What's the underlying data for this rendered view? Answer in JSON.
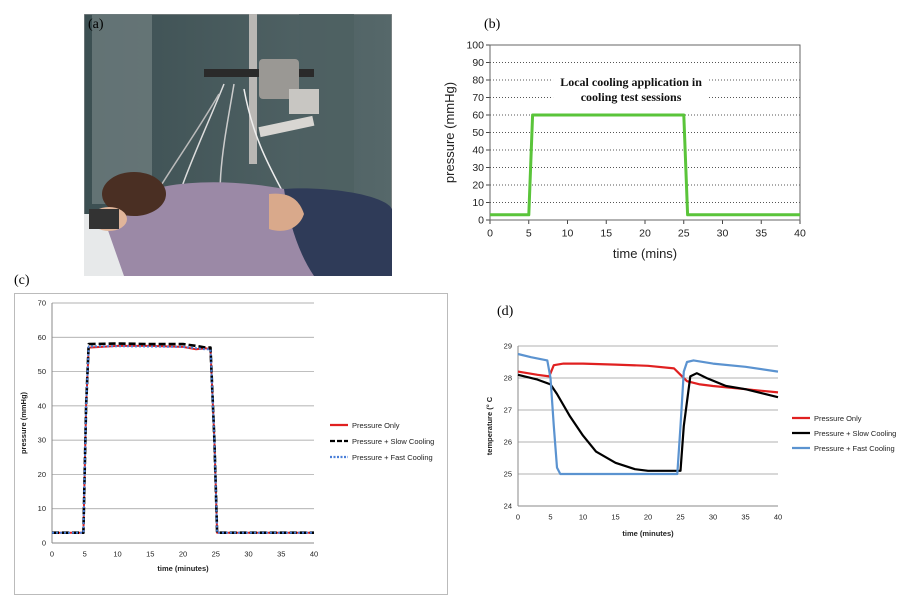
{
  "panels": {
    "a": "(a)",
    "b": "(b)",
    "c": "(c)",
    "d": "(d)"
  },
  "chart_data": [
    {
      "panel": "b",
      "type": "line",
      "annotation": [
        "Local cooling application in",
        "cooling test sessions"
      ],
      "xlabel": "time (mins)",
      "ylabel": "pressure (mmHg)",
      "xlim": [
        0,
        40
      ],
      "ylim": [
        0,
        100
      ],
      "xticks": [
        0,
        5,
        10,
        15,
        20,
        25,
        30,
        35,
        40
      ],
      "yticks": [
        0,
        10,
        20,
        30,
        40,
        50,
        60,
        70,
        80,
        90,
        100
      ],
      "grid": "horizontal dotted",
      "color": "#5ac43a",
      "series": [
        {
          "x": [
            0,
            5,
            5.5,
            25,
            25.5,
            40
          ],
          "y": [
            3,
            3,
            60,
            60,
            3,
            3
          ]
        }
      ]
    },
    {
      "panel": "c",
      "type": "line",
      "xlabel": "time (minutes)",
      "ylabel": "pressure (mmHg)",
      "xlim": [
        0,
        40
      ],
      "ylim": [
        0,
        70
      ],
      "xticks": [
        0,
        5,
        10,
        15,
        20,
        25,
        30,
        35,
        40
      ],
      "yticks": [
        0,
        10,
        20,
        30,
        40,
        50,
        60,
        70
      ],
      "grid": "horizontal",
      "legend": "right",
      "series": [
        {
          "name": "Pressure Only",
          "color": "#e02020",
          "style": "solid",
          "x": [
            0,
            4.8,
            5.2,
            5.6,
            10,
            15,
            20,
            22,
            23.5,
            24.2,
            24.8,
            25.2,
            30,
            35,
            40
          ],
          "y": [
            3,
            3,
            40,
            57,
            57.5,
            57.5,
            57.2,
            56.5,
            56.8,
            56.5,
            30,
            3,
            3,
            3,
            3
          ]
        },
        {
          "name": "Pressure + Slow Cooling",
          "color": "#000000",
          "style": "dashed",
          "x": [
            0,
            4.8,
            5.2,
            5.6,
            10,
            15,
            20,
            22,
            23.5,
            24.2,
            24.8,
            25.2,
            30,
            35,
            40
          ],
          "y": [
            3,
            3,
            40,
            58,
            58.2,
            58,
            58,
            57.5,
            57,
            57,
            30,
            3,
            3,
            3,
            3
          ]
        },
        {
          "name": "Pressure + Fast Cooling",
          "color": "#4a7fd8",
          "style": "dotted",
          "x": [
            0,
            4.8,
            5.2,
            5.6,
            10,
            15,
            20,
            22,
            23.5,
            24.2,
            24.8,
            25.2,
            30,
            35,
            40
          ],
          "y": [
            3,
            3,
            40,
            57.3,
            57.4,
            57.3,
            57.2,
            56.8,
            56.5,
            56.5,
            30,
            3,
            3,
            3,
            3
          ]
        }
      ]
    },
    {
      "panel": "d",
      "type": "line",
      "xlabel": "time (minutes)",
      "ylabel": "temperature (° C",
      "xlim": [
        0,
        40
      ],
      "ylim": [
        24,
        29
      ],
      "xticks": [
        0,
        5,
        10,
        15,
        20,
        25,
        30,
        35,
        40
      ],
      "yticks": [
        24,
        25,
        26,
        27,
        28,
        29
      ],
      "grid": "horizontal",
      "legend": "right",
      "series": [
        {
          "name": "Pressure Only",
          "color": "#e02020",
          "style": "solid",
          "x": [
            0,
            3,
            4.8,
            5.5,
            7,
            10,
            15,
            20,
            24,
            25,
            26,
            28,
            30,
            35,
            40
          ],
          "y": [
            28.2,
            28.1,
            28.05,
            28.4,
            28.45,
            28.45,
            28.42,
            28.38,
            28.3,
            28.1,
            27.9,
            27.8,
            27.75,
            27.65,
            27.55
          ]
        },
        {
          "name": "Pressure + Slow Cooling",
          "color": "#000000",
          "style": "solid",
          "x": [
            0,
            3,
            5,
            6,
            8,
            10,
            12,
            15,
            18,
            20,
            24,
            25,
            25.5,
            26.5,
            27.5,
            29,
            32,
            35,
            40
          ],
          "y": [
            28.1,
            27.95,
            27.8,
            27.5,
            26.8,
            26.2,
            25.7,
            25.35,
            25.15,
            25.1,
            25.1,
            25.1,
            26.5,
            28.05,
            28.15,
            28.0,
            27.75,
            27.65,
            27.4
          ]
        },
        {
          "name": "Pressure + Fast Cooling",
          "color": "#5b93d0",
          "style": "solid",
          "x": [
            0,
            2,
            4.5,
            5,
            5.5,
            6,
            6.5,
            8,
            10,
            15,
            20,
            24.5,
            25,
            25.5,
            26,
            27,
            30,
            35,
            40
          ],
          "y": [
            28.75,
            28.65,
            28.55,
            28.0,
            26.5,
            25.2,
            25.0,
            25.0,
            25.0,
            25.0,
            25.0,
            25.0,
            26.5,
            28.2,
            28.5,
            28.55,
            28.45,
            28.35,
            28.2
          ]
        }
      ]
    }
  ]
}
